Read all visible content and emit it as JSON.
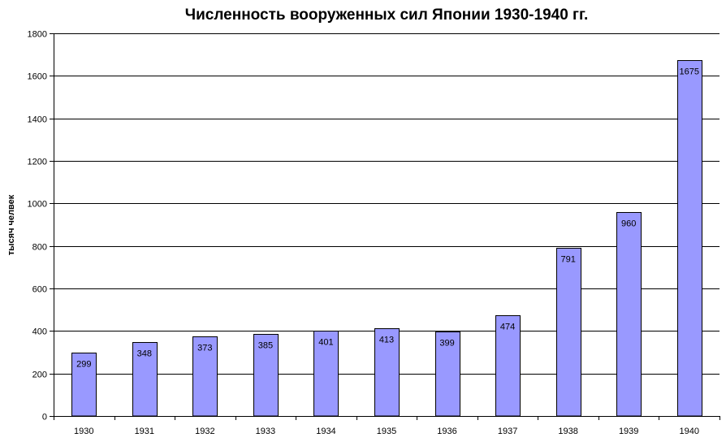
{
  "chart_data": {
    "type": "bar",
    "title": "Численность вооруженных сил Японии 1930-1940 гг.",
    "xlabel": "",
    "ylabel": "тысяч челвек",
    "categories": [
      "1930",
      "1931",
      "1932",
      "1933",
      "1934",
      "1935",
      "1936",
      "1937",
      "1938",
      "1939",
      "1940"
    ],
    "values": [
      299,
      348,
      373,
      385,
      401,
      413,
      399,
      474,
      791,
      960,
      1675
    ],
    "ylim": [
      0,
      1800
    ],
    "yticks": [
      0,
      200,
      400,
      600,
      800,
      1000,
      1200,
      1400,
      1600,
      1800
    ],
    "grid": true,
    "legend": "none",
    "colors": {
      "bar_fill": "#9999ff",
      "bar_stroke": "#000000",
      "grid": "#000000"
    }
  }
}
